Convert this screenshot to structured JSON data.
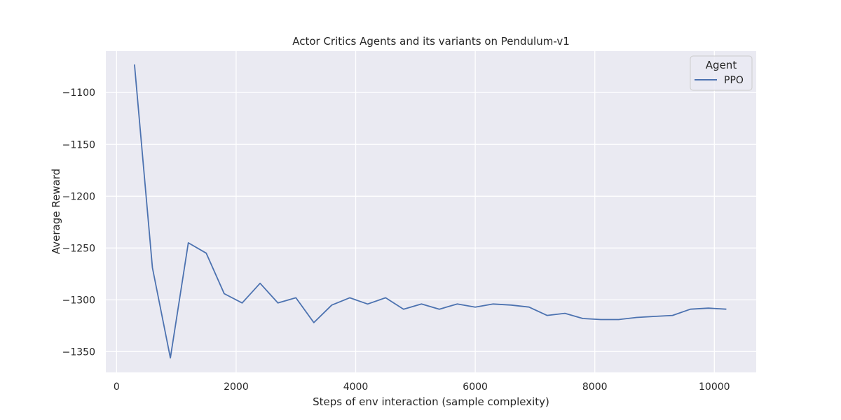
{
  "chart_data": {
    "type": "line",
    "title": "Actor Critics Agents and its variants on Pendulum-v1",
    "xlabel": "Steps of env interaction (sample complexity)",
    "ylabel": "Average Reward",
    "xlim": [
      -180,
      10700
    ],
    "ylim": [
      -1370,
      -1060
    ],
    "xticks": [
      0,
      2000,
      4000,
      6000,
      8000,
      10000
    ],
    "xtick_labels": [
      "0",
      "2000",
      "4000",
      "6000",
      "8000",
      "10000"
    ],
    "yticks": [
      -1100,
      -1150,
      -1200,
      -1250,
      -1300,
      -1350
    ],
    "ytick_labels": [
      "−1100",
      "−1150",
      "−1200",
      "−1250",
      "−1300",
      "−1350"
    ],
    "grid": true,
    "legend": {
      "title": "Agent",
      "position": "top-right"
    },
    "series": [
      {
        "name": "PPO",
        "color": "#4c72b0",
        "x": [
          300,
          600,
          900,
          1200,
          1500,
          1800,
          2100,
          2400,
          2700,
          3000,
          3300,
          3600,
          3900,
          4200,
          4500,
          4800,
          5100,
          5400,
          5700,
          6000,
          6300,
          6600,
          6900,
          7200,
          7500,
          7800,
          8100,
          8400,
          8700,
          9000,
          9300,
          9600,
          9900,
          10200
        ],
        "y": [
          -1073,
          -1269,
          -1356,
          -1245,
          -1255,
          -1294,
          -1303,
          -1284,
          -1303,
          -1298,
          -1322,
          -1305,
          -1298,
          -1304,
          -1298,
          -1309,
          -1304,
          -1309,
          -1304,
          -1307,
          -1304,
          -1305,
          -1307,
          -1315,
          -1313,
          -1318,
          -1319,
          -1319,
          -1317,
          -1316,
          -1315,
          -1309,
          -1308,
          -1309
        ]
      }
    ]
  },
  "colors": {
    "plot_background": "#eaeaf2",
    "grid": "#ffffff",
    "text": "#262626"
  }
}
